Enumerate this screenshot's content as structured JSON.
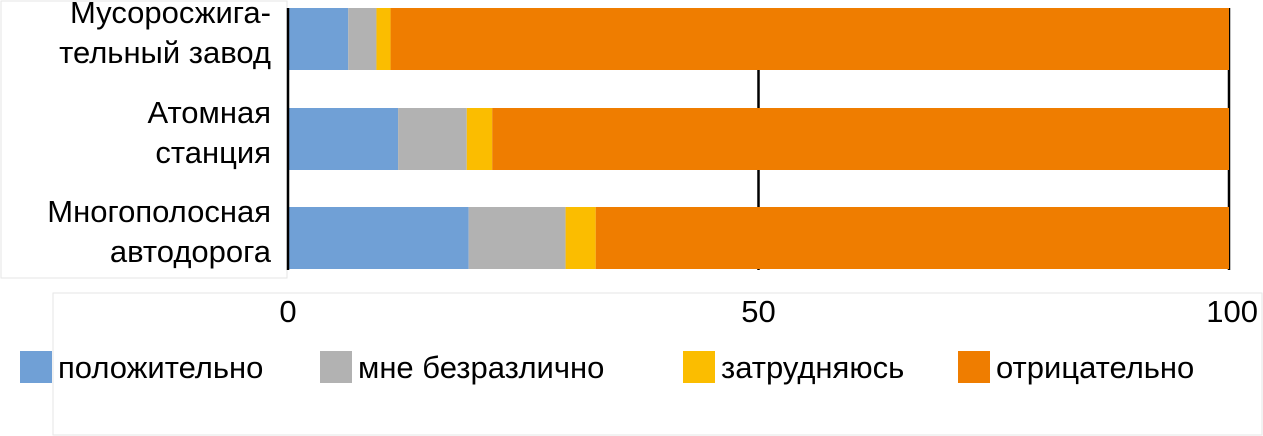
{
  "chart_data": {
    "type": "bar",
    "orientation": "horizontal",
    "stacked": true,
    "categories": [
      [
        "Мусоросжига-",
        "тельный завод"
      ],
      [
        "Атомная",
        "станция"
      ],
      [
        "Многополосная",
        "автодорога"
      ]
    ],
    "series": [
      {
        "name": "положительно",
        "color": "#70a0d6",
        "values": [
          6.4,
          11.7,
          19.2
        ]
      },
      {
        "name": "мне безразлично",
        "color": "#b2b2b2",
        "values": [
          3.0,
          7.3,
          10.3
        ]
      },
      {
        "name": "затрудняюсь",
        "color": "#fbbd00",
        "values": [
          1.5,
          2.7,
          3.2
        ]
      },
      {
        "name": "отрицательно",
        "color": "#ef7d00",
        "values": [
          89.1,
          78.3,
          67.3
        ]
      }
    ],
    "xlim": [
      0,
      100
    ],
    "xticks": [
      0,
      50,
      100
    ],
    "gridlines": true,
    "legend_position": "bottom"
  }
}
